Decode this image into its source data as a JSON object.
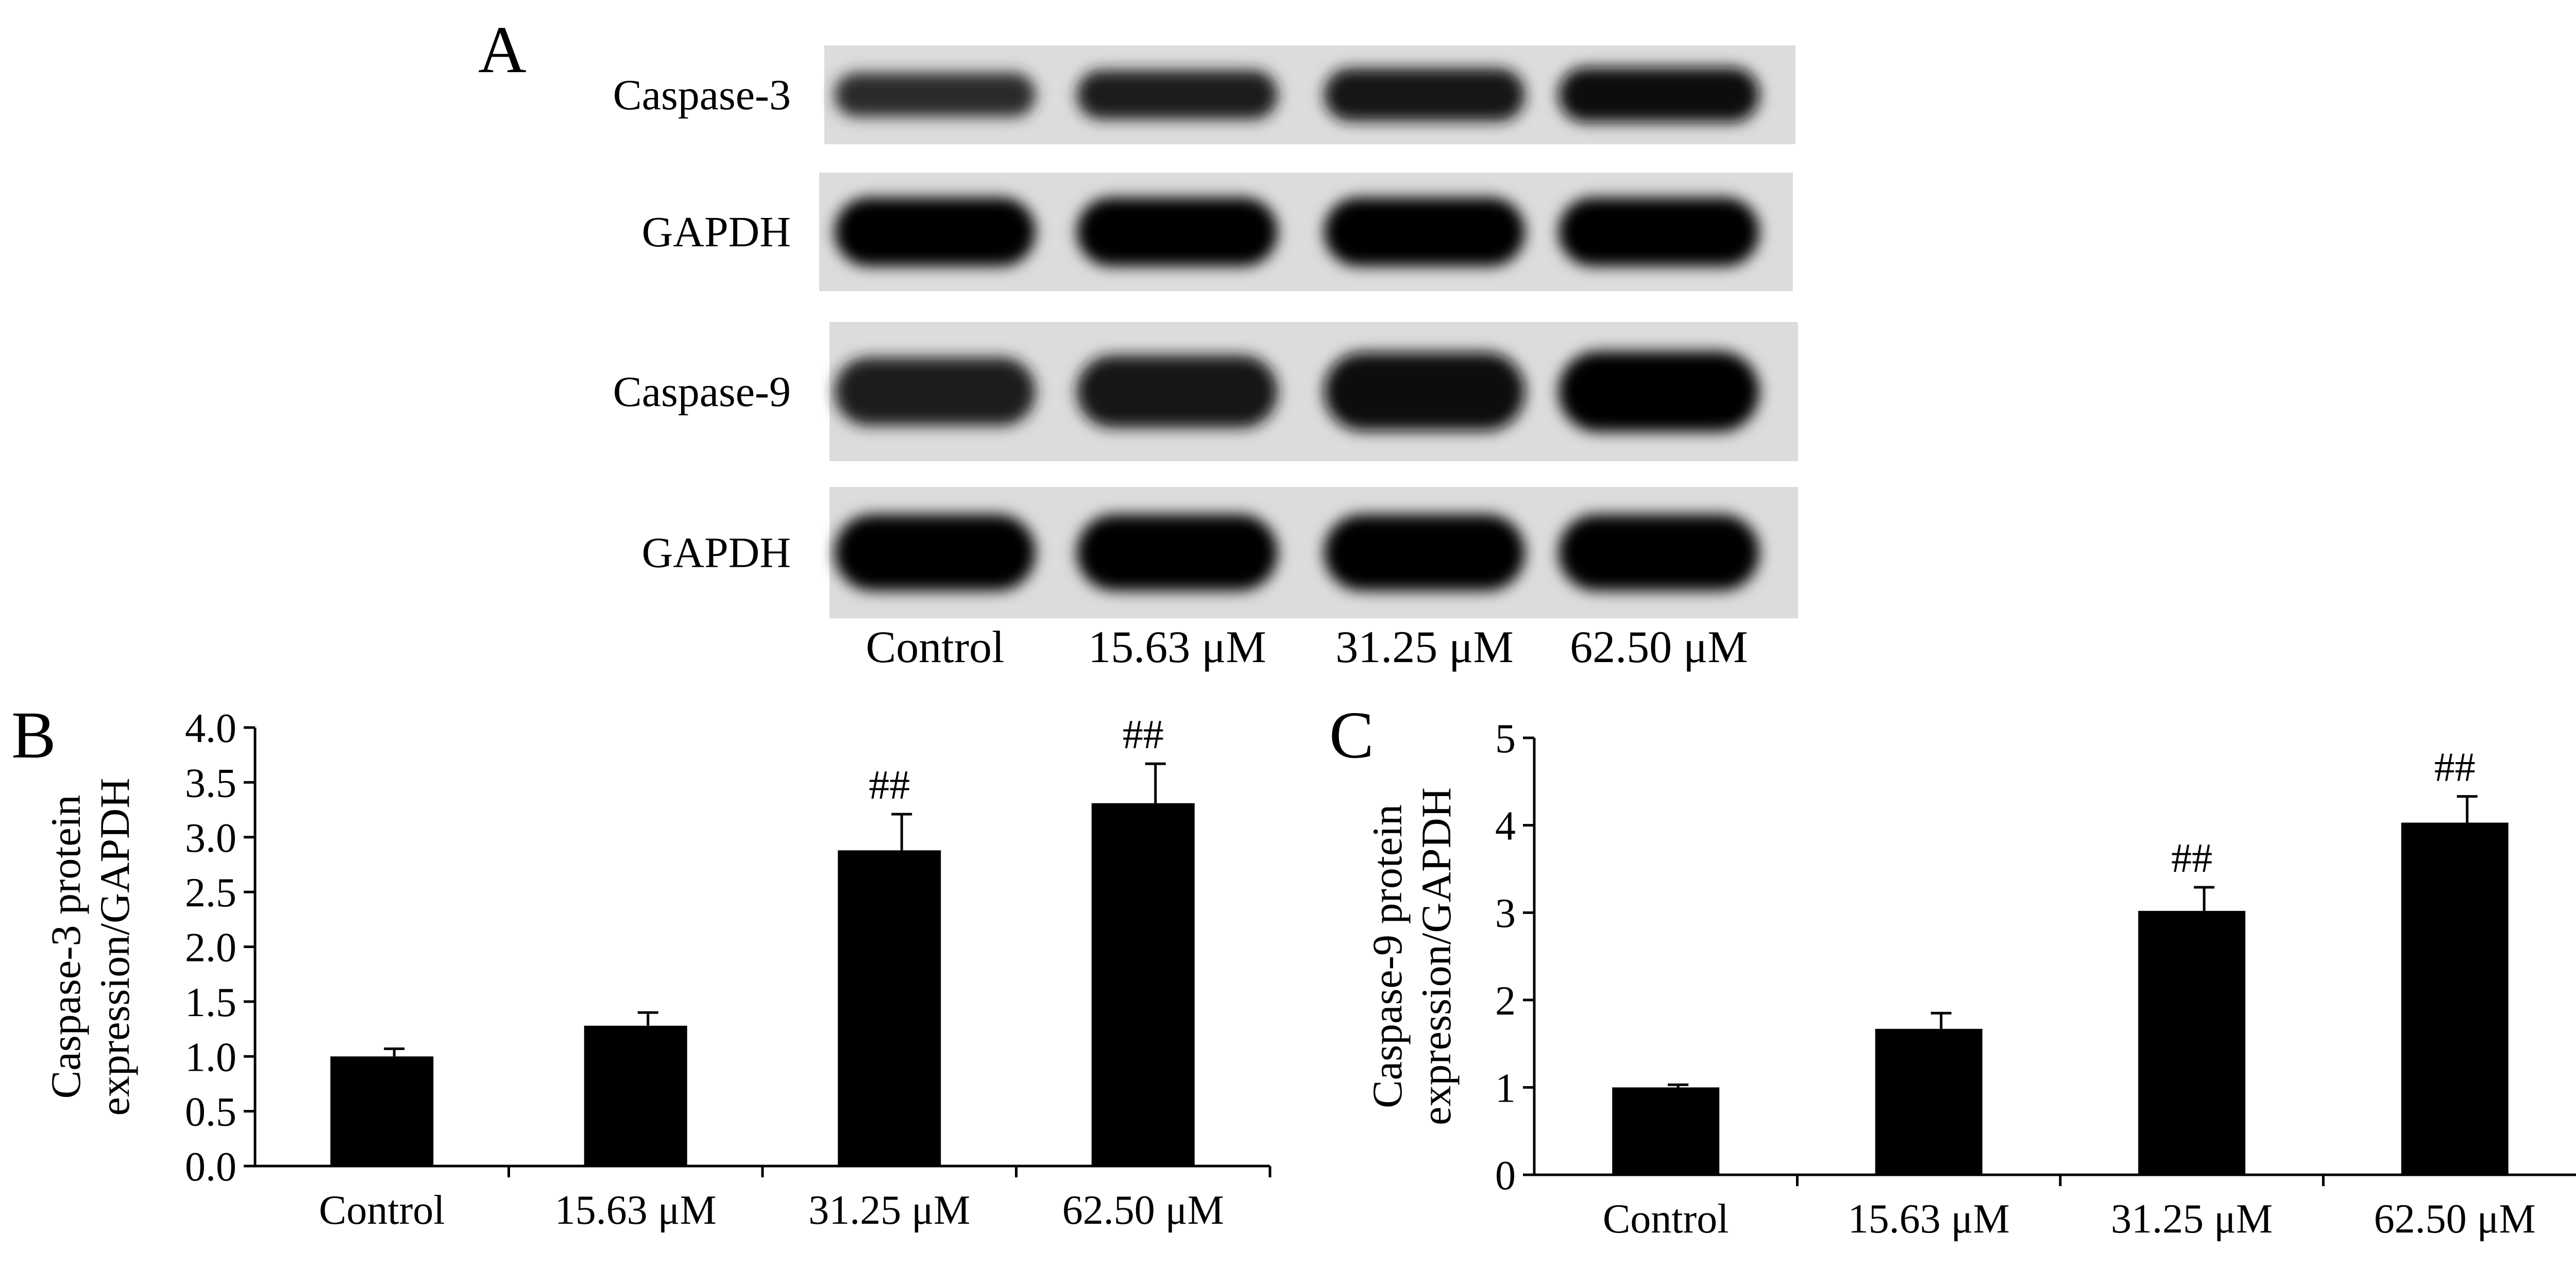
{
  "panels": {
    "A": {
      "letter": "A",
      "bands": [
        {
          "label": "Caspase-3",
          "intensities": [
            0.55,
            0.72,
            0.85,
            0.92
          ]
        },
        {
          "label": "GAPDH",
          "intensities": [
            1.0,
            1.0,
            1.0,
            1.0
          ]
        },
        {
          "label": "Caspase-9",
          "intensities": [
            0.7,
            0.8,
            0.95,
            1.0
          ]
        },
        {
          "label": "GAPDH",
          "intensities": [
            1.0,
            1.0,
            1.0,
            1.0
          ]
        }
      ],
      "lanes": [
        "Control",
        "15.63 μM",
        "31.25 μM",
        "62.50 μM"
      ]
    },
    "B": {
      "letter": "B"
    },
    "C": {
      "letter": "C"
    }
  },
  "chart_data": [
    {
      "panel": "B",
      "type": "bar",
      "categories": [
        "Control",
        "15.63 μM",
        "31.25 μM",
        "62.50 μM"
      ],
      "values": [
        1.0,
        1.28,
        2.88,
        3.31
      ],
      "errors": [
        0.07,
        0.12,
        0.33,
        0.36
      ],
      "annotations": [
        "",
        "",
        "##",
        "##"
      ],
      "ylabel": [
        "Caspase-3 protein",
        "expression/GAPDH"
      ],
      "ylim": [
        0,
        4.0
      ],
      "yticks": [
        "0.0",
        "0.5",
        "1.0",
        "1.5",
        "2.0",
        "2.5",
        "3.0",
        "3.5",
        "4.0"
      ],
      "bar_color": "#000000",
      "grid": false
    },
    {
      "panel": "C",
      "type": "bar",
      "categories": [
        "Control",
        "15.63 μM",
        "31.25 μM",
        "62.50 μM"
      ],
      "values": [
        1.0,
        1.67,
        3.02,
        4.03
      ],
      "errors": [
        0.03,
        0.18,
        0.27,
        0.3
      ],
      "annotations": [
        "",
        "",
        "##",
        "##"
      ],
      "ylabel": [
        "Caspase-9 protein",
        "expression/GAPDH"
      ],
      "ylim": [
        0,
        5
      ],
      "yticks": [
        "0",
        "1",
        "2",
        "3",
        "4",
        "5"
      ],
      "bar_color": "#000000",
      "grid": false
    }
  ]
}
